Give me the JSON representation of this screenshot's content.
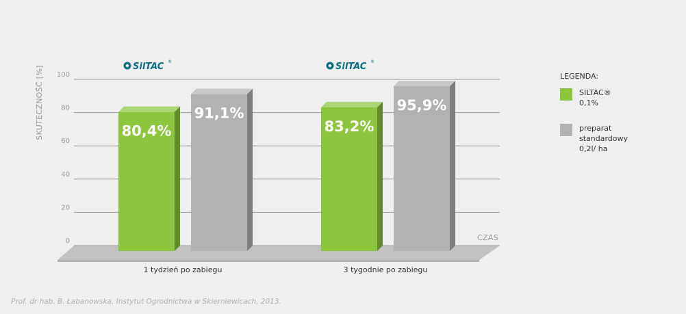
{
  "colors": {
    "siltac": "#8cc63f",
    "standard": "#b2b2b2",
    "brand": "#0a6f80"
  },
  "chart_data": {
    "type": "bar",
    "categories": [
      "1 tydzień po zabiegu",
      "3 tygodnie po zabiegu"
    ],
    "series": [
      {
        "name": "SILTAC® 0,1%",
        "values": [
          80.4,
          83.2
        ],
        "labels": [
          "80,4%",
          "83,2%"
        ]
      },
      {
        "name": "preparat standardowy 0,2l/ ha",
        "values": [
          91.1,
          95.9
        ],
        "labels": [
          "91,1%",
          "95,9%"
        ]
      }
    ],
    "ylabel": "SKUTECZNOŚĆ [%]",
    "xlabel": "CZAS",
    "ylim": [
      0,
      100
    ],
    "yticks": [
      0,
      20,
      40,
      60,
      80,
      100
    ],
    "grid": true,
    "legend_position": "right"
  },
  "brand": {
    "logo_text": "SilTAC",
    "logo_mark": "®"
  },
  "legend": {
    "title": "LEGENDA:",
    "items": [
      {
        "lines": [
          "SILTAC®",
          "0,1%"
        ],
        "color": "siltac"
      },
      {
        "lines": [
          "preparat",
          "standardowy",
          "0,2l/ ha"
        ],
        "color": "standard"
      }
    ]
  },
  "source": "Prof. dr hab. B. Łabanowska, Instytut Ogrodnictwa w Skierniewicach, 2013."
}
